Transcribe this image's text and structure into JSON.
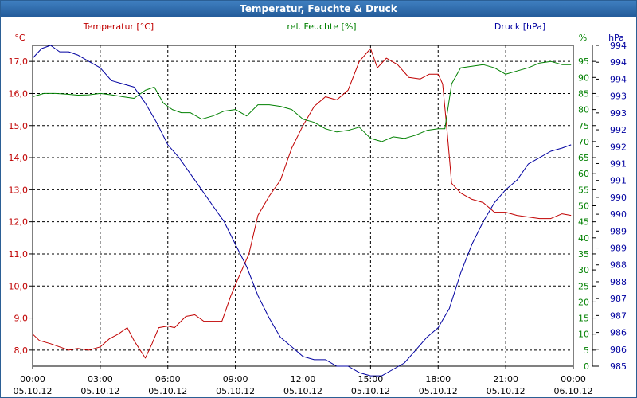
{
  "window": {
    "title": "Temperatur, Feuchte & Druck"
  },
  "chart_data": {
    "type": "line",
    "title": "Temperatur, Feuchte & Druck",
    "colors": {
      "temperature": "#c00000",
      "humidity": "#008000",
      "pressure": "#0000a0",
      "titlebar": "#2e6aa8"
    },
    "x_ticks": [
      {
        "time": "00:00",
        "date": "05.10.12"
      },
      {
        "time": "03:00",
        "date": "05.10.12"
      },
      {
        "time": "06:00",
        "date": "05.10.12"
      },
      {
        "time": "09:00",
        "date": "05.10.12"
      },
      {
        "time": "12:00",
        "date": "05.10.12"
      },
      {
        "time": "15:00",
        "date": "05.10.12"
      },
      {
        "time": "18:00",
        "date": "05.10.12"
      },
      {
        "time": "21:00",
        "date": "05.10.12"
      },
      {
        "time": "00:00",
        "date": "06.10.12"
      }
    ],
    "xlim_hours": [
      0,
      24
    ],
    "axes": {
      "temperature": {
        "title": "Temperatur [°C]",
        "unit": "°C",
        "ylim": [
          7.5,
          17.5
        ],
        "ticks": [
          "8,0",
          "9,0",
          "10,0",
          "11,0",
          "12,0",
          "13,0",
          "14,0",
          "15,0",
          "16,0",
          "17,0"
        ]
      },
      "humidity": {
        "title": "rel. Feuchte [%]",
        "unit": "%",
        "ylim": [
          0,
          100
        ],
        "ticks": [
          "0",
          "5",
          "10",
          "15",
          "20",
          "25",
          "30",
          "35",
          "40",
          "45",
          "50",
          "55",
          "60",
          "65",
          "70",
          "75",
          "80",
          "85",
          "90",
          "95"
        ]
      },
      "pressure": {
        "title": "Druck [hPa]",
        "unit": "hPa",
        "ylim": [
          985,
          995
        ],
        "ticks": [
          "985",
          "986",
          "986",
          "987",
          "987",
          "988",
          "988",
          "989",
          "989",
          "990",
          "990",
          "991",
          "991",
          "992",
          "992",
          "993",
          "993",
          "994",
          "994",
          "994"
        ]
      }
    },
    "series": [
      {
        "name": "Temperatur",
        "axis": "temperature",
        "x": [
          0,
          0.3,
          0.8,
          1.2,
          1.6,
          2.0,
          2.5,
          3.0,
          3.4,
          3.8,
          4.2,
          4.5,
          5.0,
          5.3,
          5.6,
          6.0,
          6.3,
          6.8,
          7.2,
          7.6,
          8.0,
          8.4,
          8.8,
          9.1,
          9.6,
          10.0,
          10.5,
          11.0,
          11.5,
          12.0,
          12.5,
          13.0,
          13.5,
          14.0,
          14.5,
          15.0,
          15.3,
          15.7,
          16.2,
          16.7,
          17.2,
          17.6,
          18.0,
          18.2,
          18.4,
          18.6,
          19.0,
          19.5,
          20.0,
          20.5,
          21.0,
          21.5,
          22.0,
          22.5,
          23.0,
          23.5,
          23.9
        ],
        "values": [
          8.5,
          8.3,
          8.2,
          8.1,
          8.0,
          8.05,
          8.0,
          8.1,
          8.35,
          8.5,
          8.7,
          8.3,
          7.75,
          8.2,
          8.7,
          8.75,
          8.7,
          9.05,
          9.1,
          8.9,
          8.9,
          8.9,
          9.7,
          10.2,
          11.0,
          12.2,
          12.8,
          13.3,
          14.3,
          15.0,
          15.6,
          15.9,
          15.8,
          16.1,
          17.0,
          17.4,
          16.8,
          17.1,
          16.9,
          16.5,
          16.45,
          16.6,
          16.6,
          16.3,
          14.8,
          13.2,
          12.9,
          12.7,
          12.6,
          12.3,
          12.3,
          12.2,
          12.15,
          12.1,
          12.1,
          12.25,
          12.2
        ]
      },
      {
        "name": "rel. Feuchte",
        "axis": "humidity",
        "x": [
          0,
          0.5,
          1.0,
          1.5,
          2.0,
          2.5,
          3.0,
          3.5,
          4.0,
          4.5,
          5.0,
          5.4,
          5.8,
          6.2,
          6.6,
          7.0,
          7.5,
          8.0,
          8.5,
          9.0,
          9.5,
          10.0,
          10.5,
          11.0,
          11.5,
          12.0,
          12.5,
          13.0,
          13.5,
          14.0,
          14.5,
          15.0,
          15.5,
          16.0,
          16.5,
          17.0,
          17.5,
          18.0,
          18.3,
          18.6,
          19.0,
          19.5,
          20.0,
          20.5,
          21.0,
          21.5,
          22.0,
          22.5,
          23.0,
          23.5,
          23.9
        ],
        "values": [
          84,
          85,
          85,
          84.8,
          84.5,
          84.6,
          85,
          84.6,
          84,
          83.5,
          86,
          87,
          82,
          80,
          79,
          79,
          77,
          78,
          79.5,
          80,
          78,
          81.5,
          81.5,
          81,
          80,
          77,
          76,
          74,
          73,
          73.5,
          74.5,
          71,
          70,
          71.5,
          71,
          72,
          73.5,
          74,
          74,
          88,
          93,
          93.5,
          94,
          93,
          91,
          92,
          93,
          94.5,
          95,
          94,
          94
        ]
      },
      {
        "name": "Druck",
        "axis": "pressure",
        "x": [
          0,
          0.4,
          0.8,
          1.2,
          1.6,
          2.0,
          2.5,
          3.0,
          3.5,
          4.0,
          4.5,
          5.0,
          5.5,
          6.0,
          6.5,
          7.0,
          7.5,
          8.0,
          8.5,
          9.0,
          9.5,
          10.0,
          10.5,
          11.0,
          11.5,
          12.0,
          12.5,
          13.0,
          13.5,
          14.0,
          14.5,
          15.0,
          15.5,
          16.0,
          16.5,
          17.0,
          17.5,
          18.0,
          18.5,
          19.0,
          19.5,
          20.0,
          20.5,
          21.0,
          21.5,
          22.0,
          22.5,
          23.0,
          23.5,
          23.9
        ],
        "values": [
          994.6,
          994.9,
          995.0,
          994.8,
          994.8,
          994.7,
          994.5,
          994.3,
          993.9,
          993.8,
          993.7,
          993.2,
          992.6,
          991.9,
          991.5,
          991.0,
          990.5,
          990.0,
          989.5,
          988.8,
          988.1,
          987.2,
          986.5,
          985.9,
          985.6,
          985.3,
          985.2,
          985.2,
          985.0,
          985.0,
          984.8,
          984.7,
          984.7,
          984.9,
          985.1,
          985.5,
          985.9,
          986.2,
          986.8,
          987.9,
          988.8,
          989.5,
          990.1,
          990.5,
          990.8,
          991.3,
          991.5,
          991.7,
          991.8,
          991.9
        ]
      }
    ]
  }
}
